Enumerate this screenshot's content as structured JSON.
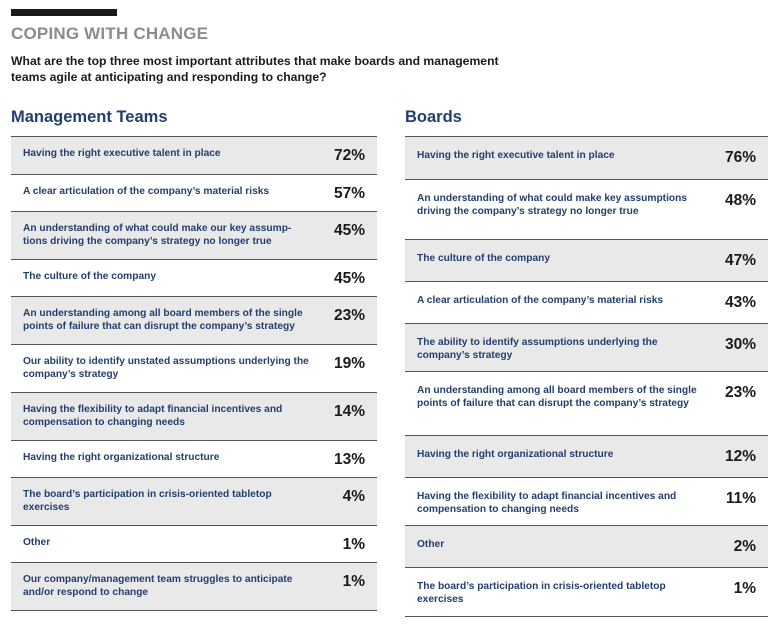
{
  "header": {
    "heading": "COPING WITH CHANGE",
    "question": "What are the top three most important attributes that make boards and management teams agile at anticipating and responding to change?"
  },
  "management": {
    "title": "Management Teams",
    "rows": [
      {
        "label": "Having the right executive talent in place",
        "pct": "72%"
      },
      {
        "label": "A clear articulation of the company’s material risks",
        "pct": "57%"
      },
      {
        "label": "An understanding of what could make our key assump-tions driving the company’s strategy no longer true",
        "pct": "45%"
      },
      {
        "label": "The culture of the company",
        "pct": "45%"
      },
      {
        "label": "An understanding among all board members of the single points of failure that can disrupt the company’s strategy",
        "pct": "23%"
      },
      {
        "label": "Our ability to identify unstated assumptions underlying the company’s strategy",
        "pct": "19%"
      },
      {
        "label": "Having the flexibility to adapt financial incentives and compensation to changing needs",
        "pct": "14%"
      },
      {
        "label": "Having the right organizational structure",
        "pct": "13%"
      },
      {
        "label": "The board’s participation in crisis-oriented tabletop exercises",
        "pct": "4%"
      },
      {
        "label": "Other",
        "pct": "1%"
      },
      {
        "label": "Our company/management team struggles to anticipate and/or respond to change",
        "pct": "1%"
      }
    ]
  },
  "boards": {
    "title": "Boards",
    "rows": [
      {
        "label": "Having the right executive talent in place",
        "pct": "76%"
      },
      {
        "label": "An understanding of what could make key assumptions driving the company’s strategy no longer true",
        "pct": "48%"
      },
      {
        "label": "The culture of the company",
        "pct": "47%"
      },
      {
        "label": "A clear articulation of the company’s material risks",
        "pct": "43%"
      },
      {
        "label": "The ability to identify assumptions underlying the company’s strategy",
        "pct": "30%"
      },
      {
        "label": "An understanding among all board members of the single points of failure that can disrupt the company’s strategy",
        "pct": "23%"
      },
      {
        "label": "Having the right organizational structure",
        "pct": "12%"
      },
      {
        "label": "Having the flexibility to adapt financial incentives and compensation to changing needs",
        "pct": "11%"
      },
      {
        "label": "Other",
        "pct": "2%"
      },
      {
        "label": "The board’s participation in crisis-oriented tabletop exercises",
        "pct": "1%"
      }
    ]
  }
}
